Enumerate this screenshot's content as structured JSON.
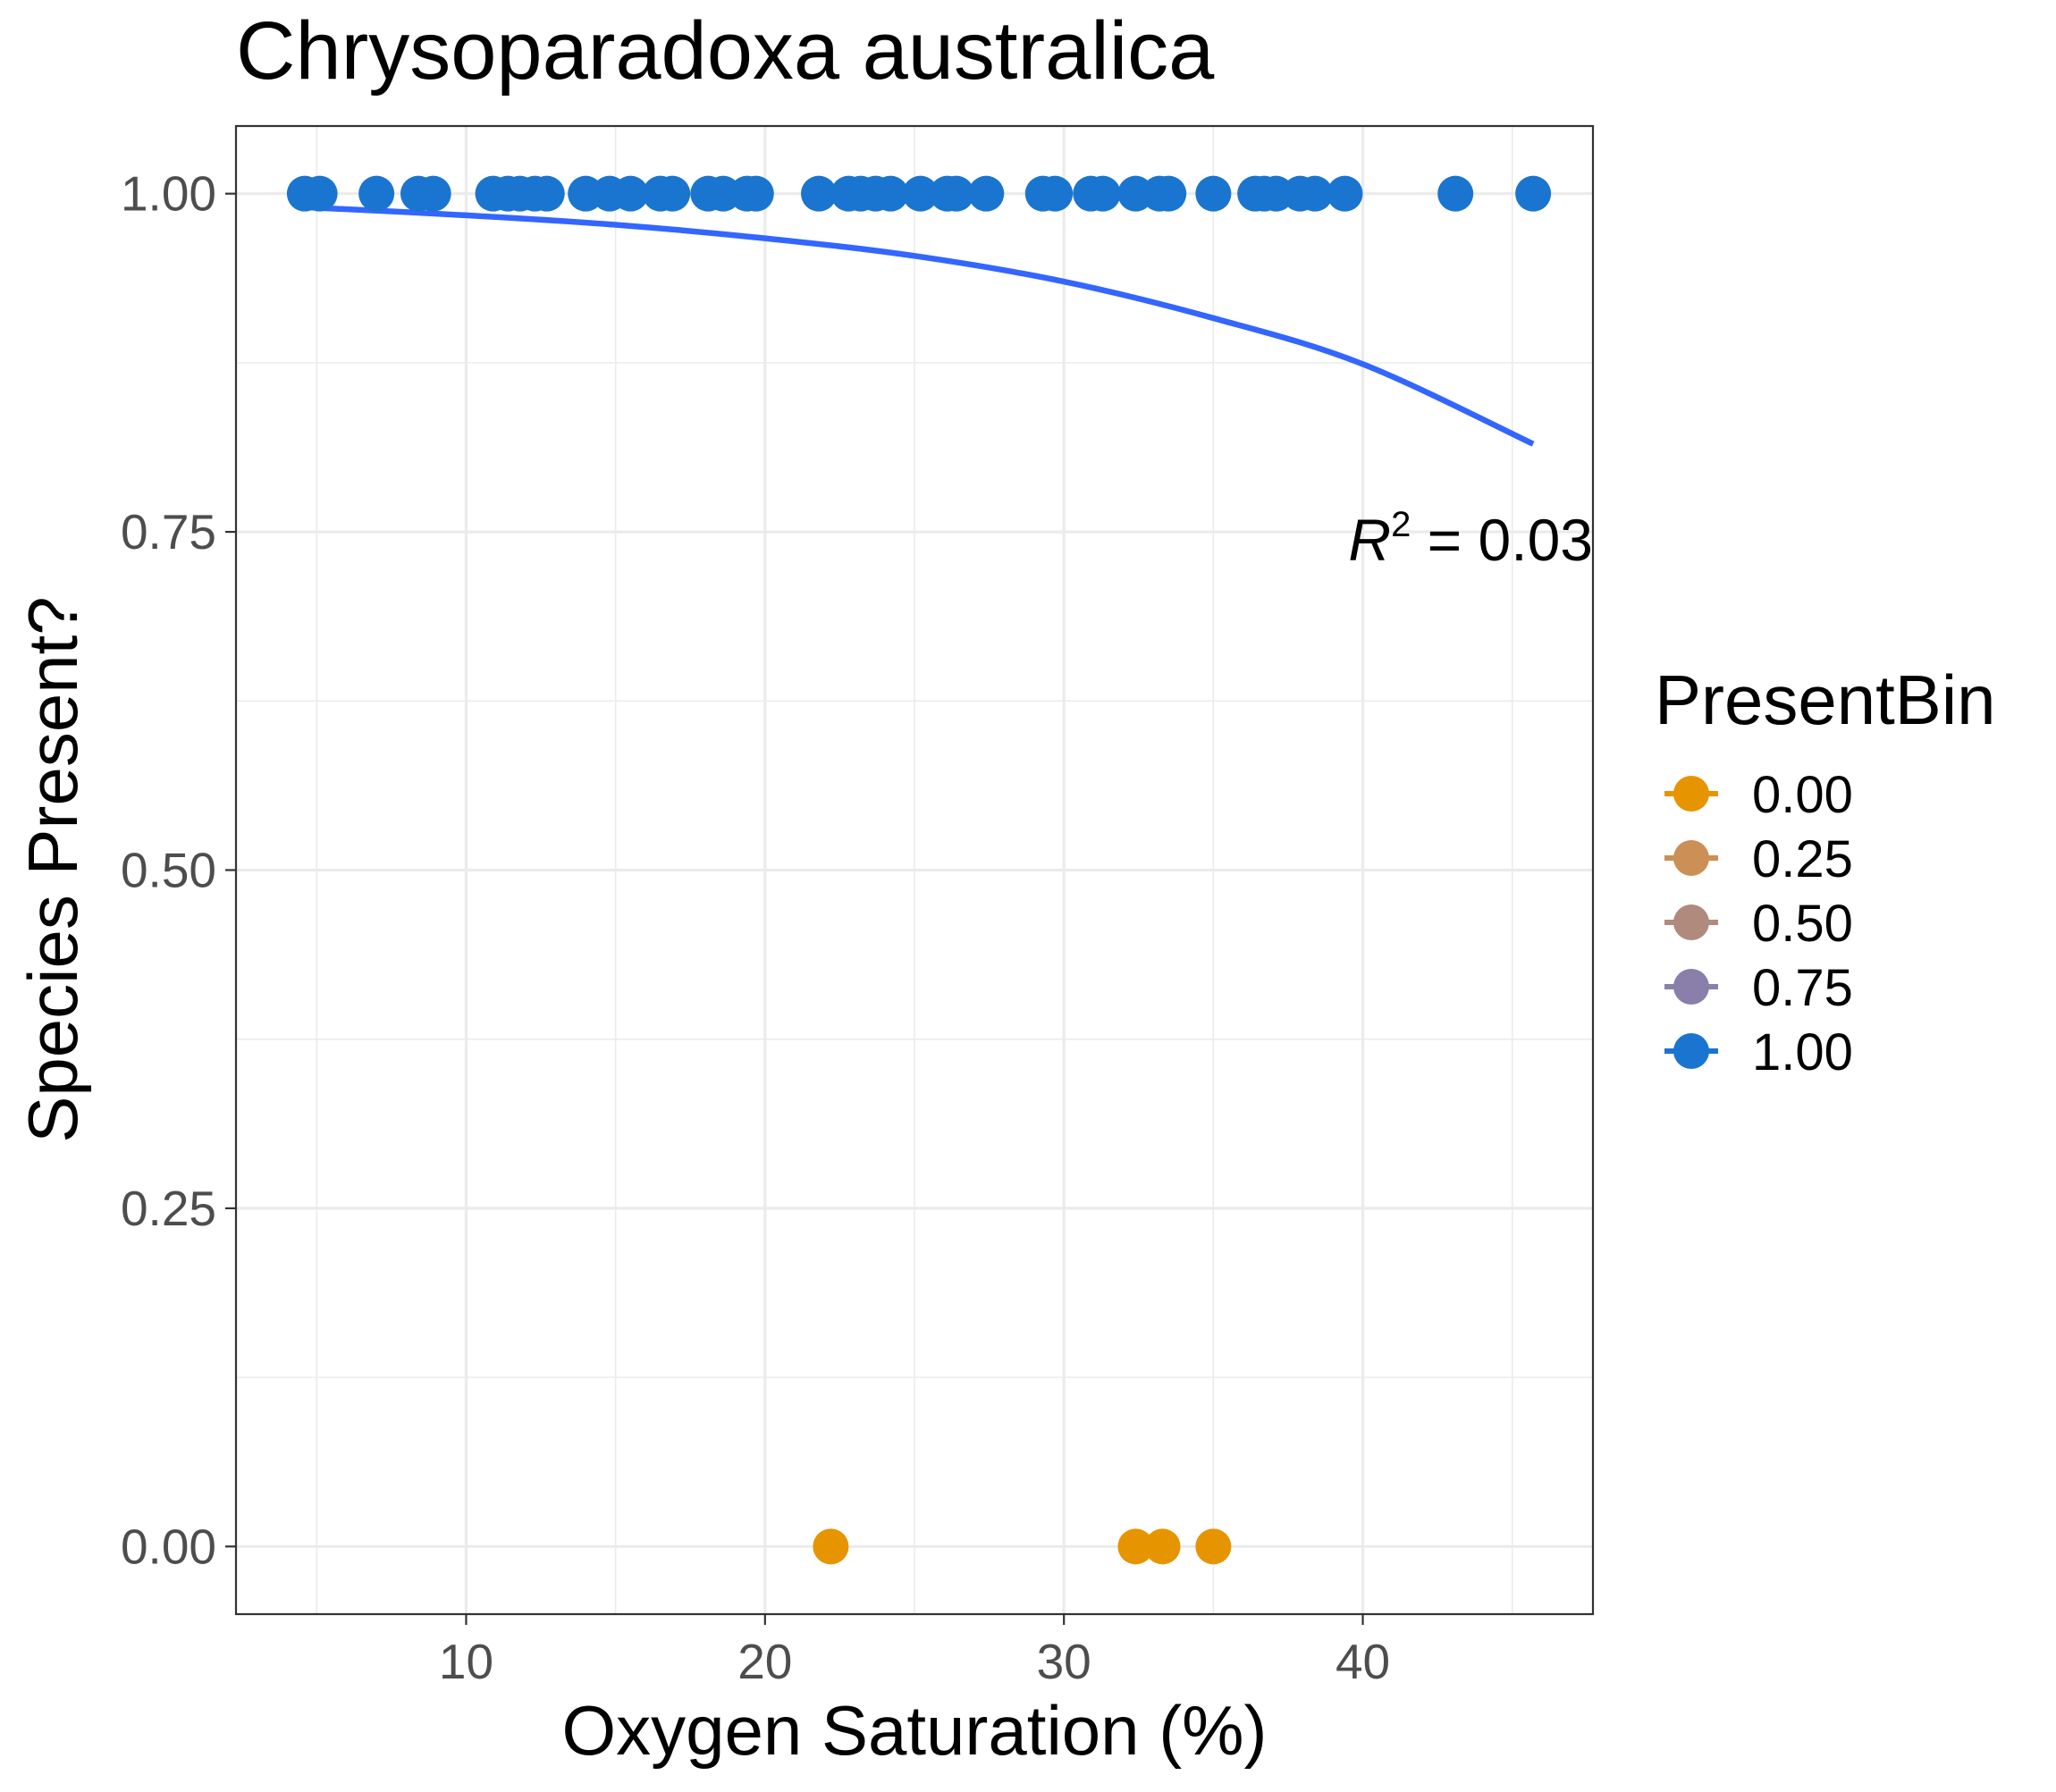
{
  "chart_data": {
    "type": "scatter",
    "title": "Chrysoparadoxa australica",
    "xlabel": "Oxygen Saturation (%)",
    "ylabel": "Species Present?",
    "xlim": [
      2.3,
      47.7
    ],
    "ylim": [
      -0.05,
      1.05
    ],
    "x_ticks": [
      10,
      20,
      30,
      40
    ],
    "x_tick_labels": [
      "10",
      "20",
      "30",
      "40"
    ],
    "y_ticks": [
      0,
      0.25,
      0.5,
      0.75,
      1.0
    ],
    "y_tick_labels": [
      "0.00",
      "0.25",
      "0.50",
      "0.75",
      "1.00"
    ],
    "grid": true,
    "legend": {
      "title": "PresentBin",
      "placement": "right",
      "entries": [
        {
          "label": "0.00",
          "color": "#E69500"
        },
        {
          "label": "0.25",
          "color": "#CC8F55"
        },
        {
          "label": "0.50",
          "color": "#B08A7D"
        },
        {
          "label": "0.75",
          "color": "#8A7FAA"
        },
        {
          "label": "1.00",
          "color": "#1A75D0"
        }
      ]
    },
    "series": [
      {
        "presentbin": 1.0,
        "color": "#1A75D0",
        "x": [
          4.6,
          5.1,
          7.0,
          8.4,
          8.9,
          10.9,
          11.4,
          11.8,
          12.3,
          12.7,
          14.0,
          14.8,
          15.5,
          16.5,
          16.9,
          18.1,
          18.6,
          19.4,
          19.7,
          21.8,
          22.8,
          23.2,
          23.7,
          24.2,
          25.2,
          26.1,
          26.4,
          27.4,
          29.3,
          29.7,
          30.9,
          31.3,
          32.4,
          33.2,
          33.5,
          35.0,
          36.4,
          36.7,
          37.1,
          37.9,
          38.4,
          39.4,
          43.1,
          45.7
        ],
        "y": [
          1,
          1,
          1,
          1,
          1,
          1,
          1,
          1,
          1,
          1,
          1,
          1,
          1,
          1,
          1,
          1,
          1,
          1,
          1,
          1,
          1,
          1,
          1,
          1,
          1,
          1,
          1,
          1,
          1,
          1,
          1,
          1,
          1,
          1,
          1,
          1,
          1,
          1,
          1,
          1,
          1,
          1,
          1,
          1
        ]
      },
      {
        "presentbin": 0.0,
        "color": "#E69500",
        "x": [
          22.2,
          32.4,
          33.3,
          35.0
        ],
        "y": [
          0,
          0,
          0,
          0
        ]
      }
    ],
    "fit_line": {
      "color": "#3366FF",
      "x": [
        4.6,
        10,
        15,
        20,
        25,
        30,
        35,
        40,
        45.7
      ],
      "y": [
        0.99,
        0.984,
        0.977,
        0.967,
        0.954,
        0.935,
        0.908,
        0.874,
        0.815
      ]
    },
    "annotation": {
      "symbol": "R",
      "superscript": "2",
      "text": " = 0.03"
    }
  }
}
